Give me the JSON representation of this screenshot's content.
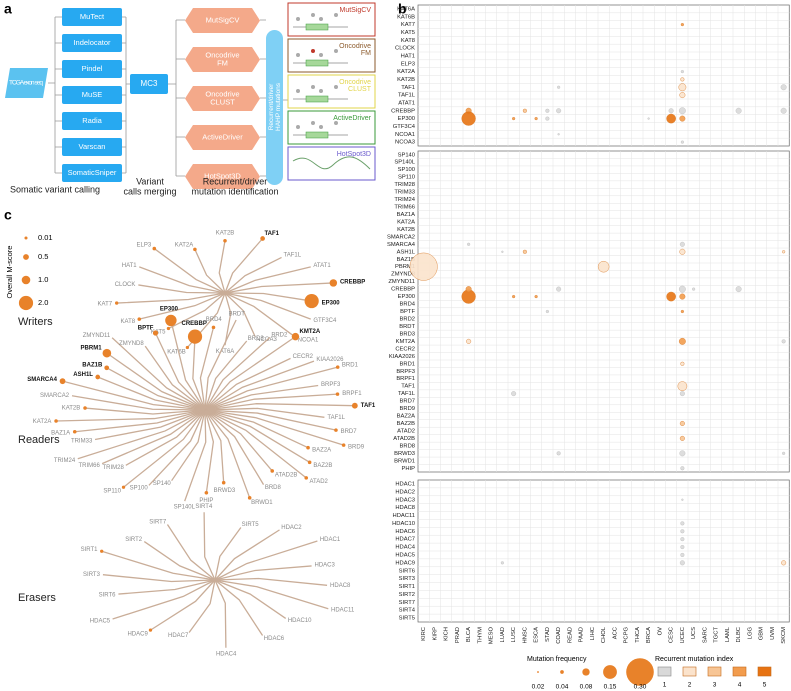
{
  "panel_a": {
    "label": "a",
    "input": "TCGA exon seq",
    "callers": [
      "MuTect",
      "Indelocator",
      "Pindel",
      "MuSE",
      "Radia",
      "Varscan",
      "SomaticSniper"
    ],
    "merger": "MC3",
    "tools": [
      [
        "MutSigCV"
      ],
      [
        "Oncodrive",
        "FM"
      ],
      [
        "Oncodrive",
        "CLUST"
      ],
      [
        "ActiveDriver"
      ],
      [
        "HotSpot3D"
      ]
    ],
    "result": [
      "Recurrent/driver",
      "HAHP mutations"
    ],
    "tool_panels": [
      [
        "MutSigCV"
      ],
      [
        "Oncodrive",
        "FM"
      ],
      [
        "Oncodrive",
        "CLUST"
      ],
      [
        "ActiveDriver"
      ],
      [
        "HotSpot3D"
      ]
    ],
    "captions": [
      [
        "Somatic variant calling"
      ],
      [
        "Variant",
        "calls merging"
      ],
      [
        "Recurrent/driver",
        "mutation identification"
      ]
    ]
  },
  "panel_b": {
    "label": "b",
    "columns": [
      "KIRC",
      "KIRP",
      "KICH",
      "PRAD",
      "BLCA",
      "THYM",
      "MESO",
      "LUAD",
      "LUSC",
      "HNSC",
      "ESCA",
      "STAD",
      "COAD",
      "READ",
      "PAAD",
      "LIHC",
      "CHOL",
      "ACC",
      "PCPG",
      "THCA",
      "BRCA",
      "OV",
      "CESC",
      "UCEC",
      "UCS",
      "SARC",
      "TGCT",
      "LAML",
      "DLBC",
      "LGG",
      "GBM",
      "UVM",
      "SKCM"
    ],
    "groups": [
      {
        "genes": [
          "KAT6A",
          "KAT6B",
          "KAT7",
          "KAT5",
          "KAT8",
          "CLOCK",
          "HAT1",
          "ELP3",
          "KAT2A",
          "KAT2B",
          "TAF1",
          "TAF1L",
          "ATAT1",
          "CREBBP",
          "EP300",
          "GTF3C4",
          "NCOA1",
          "NCOA3"
        ],
        "points": [
          [
            23,
            2,
            0.03,
            4
          ],
          [
            23,
            9,
            0.04,
            2
          ],
          [
            23,
            10,
            0.08,
            2
          ],
          [
            23,
            11,
            0.06,
            2
          ],
          [
            4,
            13,
            0.06,
            4
          ],
          [
            9,
            13,
            0.04,
            3
          ],
          [
            11,
            13,
            0.04,
            1
          ],
          [
            12,
            13,
            0.05,
            1
          ],
          [
            22,
            13,
            0.05,
            1
          ],
          [
            23,
            13,
            0.07,
            1
          ],
          [
            28,
            13,
            0.06,
            1
          ],
          [
            32,
            13,
            0.06,
            1
          ],
          [
            4,
            14,
            0.15,
            5
          ],
          [
            8,
            14,
            0.03,
            4
          ],
          [
            10,
            14,
            0.03,
            4
          ],
          [
            22,
            14,
            0.1,
            5
          ],
          [
            23,
            14,
            0.06,
            4
          ],
          [
            11,
            14,
            0.04,
            1
          ],
          [
            32,
            10,
            0.06,
            1
          ],
          [
            12,
            10,
            0.03,
            1
          ],
          [
            23,
            8,
            0.03,
            1
          ],
          [
            12,
            16,
            0.02,
            1
          ],
          [
            23,
            17,
            0.03,
            1
          ],
          [
            20,
            14,
            0.02,
            1
          ]
        ]
      },
      {
        "genes": [
          "SP140",
          "SP140L",
          "SP100",
          "SP110",
          "TRIM28",
          "TRIM33",
          "TRIM24",
          "TRIM66",
          "BAZ1A",
          "KAT2A",
          "KAT2B",
          "SMARCA2",
          "SMARCA4",
          "ASH1L",
          "BAZ1B",
          "PBRM1",
          "ZMYND8",
          "ZMYND11",
          "CREBBP",
          "EP300",
          "BRD4",
          "BPTF",
          "BRD2",
          "BRDT",
          "BRD3",
          "KMT2A",
          "CECR2",
          "KIAA2026",
          "BRD1",
          "BRPF3",
          "BRPF1",
          "TAF1",
          "TAF1L",
          "BRD7",
          "BRD9",
          "BAZ2A",
          "BAZ2B",
          "ATAD2",
          "ATAD2B",
          "BRD8",
          "BRWD3",
          "BRWD1",
          "PHIP"
        ],
        "points": [
          [
            0,
            15,
            0.3,
            2
          ],
          [
            16,
            15,
            0.12,
            2
          ],
          [
            4,
            19,
            0.15,
            5
          ],
          [
            22,
            19,
            0.1,
            5
          ],
          [
            23,
            19,
            0.06,
            4
          ],
          [
            4,
            18,
            0.06,
            4
          ],
          [
            12,
            18,
            0.05,
            1
          ],
          [
            28,
            18,
            0.06,
            1
          ],
          [
            23,
            18,
            0.07,
            1
          ],
          [
            23,
            31,
            0.1,
            2
          ],
          [
            23,
            25,
            0.07,
            4
          ],
          [
            4,
            25,
            0.05,
            2
          ],
          [
            32,
            25,
            0.04,
            1
          ],
          [
            23,
            12,
            0.05,
            1
          ],
          [
            9,
            13,
            0.04,
            3
          ],
          [
            23,
            13,
            0.06,
            2
          ],
          [
            4,
            12,
            0.03,
            1
          ],
          [
            23,
            28,
            0.04,
            2
          ],
          [
            23,
            36,
            0.05,
            3
          ],
          [
            23,
            38,
            0.05,
            3
          ],
          [
            23,
            40,
            0.06,
            1
          ],
          [
            23,
            42,
            0.04,
            1
          ],
          [
            8,
            32,
            0.05,
            1
          ],
          [
            23,
            32,
            0.05,
            1
          ],
          [
            12,
            40,
            0.04,
            1
          ],
          [
            32,
            13,
            0.03,
            2
          ],
          [
            10,
            19,
            0.03,
            4
          ],
          [
            8,
            19,
            0.03,
            4
          ],
          [
            11,
            21,
            0.03,
            1
          ],
          [
            23,
            21,
            0.03,
            4
          ],
          [
            32,
            40,
            0.03,
            1
          ],
          [
            7,
            13,
            0.02,
            1
          ],
          [
            24,
            18,
            0.03,
            1
          ]
        ]
      },
      {
        "genes": [
          "HDAC1",
          "HDAC2",
          "HDAC3",
          "HDAC8",
          "HDAC11",
          "HDAC10",
          "HDAC6",
          "HDAC7",
          "HDAC4",
          "HDAC5",
          "HDAC9",
          "SIRT6",
          "SIRT3",
          "SIRT1",
          "SIRT2",
          "SIRT7",
          "SIRT4",
          "SIRT5"
        ],
        "points": [
          [
            23,
            5,
            0.04,
            1
          ],
          [
            23,
            6,
            0.04,
            1
          ],
          [
            23,
            7,
            0.04,
            1
          ],
          [
            23,
            8,
            0.04,
            1
          ],
          [
            23,
            9,
            0.04,
            1
          ],
          [
            23,
            10,
            0.05,
            1
          ],
          [
            32,
            10,
            0.05,
            2
          ],
          [
            7,
            10,
            0.03,
            1
          ],
          [
            23,
            2,
            0.02,
            1
          ]
        ]
      }
    ],
    "size_legend": {
      "title": "Mutation frequency",
      "values": [
        0.02,
        0.04,
        0.08,
        0.15,
        {
          "value": 0.3,
          "label": "0.30"
        }
      ]
    },
    "index_legend": {
      "title": "Recurrent mutation index",
      "values": [
        1,
        2,
        3,
        4,
        5
      ],
      "colors": [
        "#d9d9d9",
        "#fbe3cc",
        "#f7c595",
        "#f29c4d",
        "#e77312"
      ]
    }
  },
  "panel_c": {
    "label": "c",
    "legend": {
      "title": "Overall M-score",
      "values": [
        0.01,
        0.5,
        {
          "value": 1,
          "label": "1.0"
        },
        {
          "value": 2,
          "label": "2.0"
        }
      ]
    },
    "trees": [
      {
        "name": "Writers",
        "leaves": [
          {
            "label": "CLOCK"
          },
          {
            "label": "HAT1"
          },
          {
            "label": "ELP3",
            "score": 0.1
          },
          {
            "label": "KAT2A",
            "score": 0.1
          },
          {
            "label": "KAT2B",
            "score": 0.1
          },
          {
            "label": "TAF1",
            "score": 0.3
          },
          {
            "label": "TAF1L"
          },
          {
            "label": "ATAT1"
          },
          {
            "label": "CREBBP",
            "score": 0.8
          },
          {
            "label": "EP300",
            "score": 2
          },
          {
            "label": "GTF3C4"
          },
          {
            "label": "NCOA1"
          },
          {
            "label": "NCOA3"
          },
          {
            "label": "KAT6A"
          },
          {
            "label": "KAT6B",
            "score": 0.05
          },
          {
            "label": "KAT5",
            "score": 0.05
          },
          {
            "label": "KAT8",
            "score": 0.1
          },
          {
            "label": "KAT7",
            "score": 0.05
          }
        ]
      },
      {
        "name": "Readers",
        "leaves": [
          {
            "label": "BAZ1B",
            "score": 0.3
          },
          {
            "label": "PBRM1",
            "score": 1
          },
          {
            "label": "ZMYND11"
          },
          {
            "label": "ZMYND8"
          },
          {
            "label": "BPTF",
            "score": 0.4
          },
          {
            "label": "EP300",
            "score": 1.5
          },
          {
            "label": "CREBBP",
            "score": 2
          },
          {
            "label": "BRD4",
            "score": 0.1
          },
          {
            "label": "BRDT"
          },
          {
            "label": "BRD3"
          },
          {
            "label": "BRD2"
          },
          {
            "label": "KMT2A",
            "score": 0.8
          },
          {
            "label": "CECR2"
          },
          {
            "label": "KIAA2026"
          },
          {
            "label": "BRD1",
            "score": 0.1
          },
          {
            "label": "BRPF3"
          },
          {
            "label": "BRPF1",
            "score": 0.1
          },
          {
            "label": "TAF1",
            "score": 0.5
          },
          {
            "label": "TAF1L"
          },
          {
            "label": "BRD7",
            "score": 0.1
          },
          {
            "label": "BRD9",
            "score": 0.1
          },
          {
            "label": "BAZ2A",
            "score": 0.1
          },
          {
            "label": "BAZ2B",
            "score": 0.1
          },
          {
            "label": "ATAD2",
            "score": 0.1
          },
          {
            "label": "ATAD2B",
            "score": 0.1
          },
          {
            "label": "BRD8"
          },
          {
            "label": "BRWD1",
            "score": 0.1
          },
          {
            "label": "BRWD3",
            "score": 0.1
          },
          {
            "label": "PHIP",
            "score": 0.1
          },
          {
            "label": "SP140L"
          },
          {
            "label": "SP140"
          },
          {
            "label": "SP100"
          },
          {
            "label": "SP110",
            "score": 0.05
          },
          {
            "label": "TRIM28"
          },
          {
            "label": "TRIM66"
          },
          {
            "label": "TRIM24"
          },
          {
            "label": "TRIM33"
          },
          {
            "label": "BAZ1A",
            "score": 0.1
          },
          {
            "label": "KAT2A",
            "score": 0.1
          },
          {
            "label": "KAT2B",
            "score": 0.1
          },
          {
            "label": "SMARCA2"
          },
          {
            "label": "SMARCA4",
            "score": 0.5
          },
          {
            "label": "ASH1L",
            "score": 0.3
          }
        ]
      },
      {
        "name": "Erasers",
        "leaves": [
          {
            "label": "SIRT6"
          },
          {
            "label": "SIRT3"
          },
          {
            "label": "SIRT1",
            "score": 0.05
          },
          {
            "label": "SIRT2"
          },
          {
            "label": "SIRT7"
          },
          {
            "label": "SIRT4"
          },
          {
            "label": "SIRT5"
          },
          {
            "label": "HDAC2"
          },
          {
            "label": "HDAC1"
          },
          {
            "label": "HDAC3"
          },
          {
            "label": "HDAC8"
          },
          {
            "label": "HDAC11"
          },
          {
            "label": "HDAC10"
          },
          {
            "label": "HDAC6"
          },
          {
            "label": "HDAC4"
          },
          {
            "label": "HDAC7"
          },
          {
            "label": "HDAC9",
            "score": 0.05
          },
          {
            "label": "HDAC5"
          }
        ]
      }
    ]
  }
}
